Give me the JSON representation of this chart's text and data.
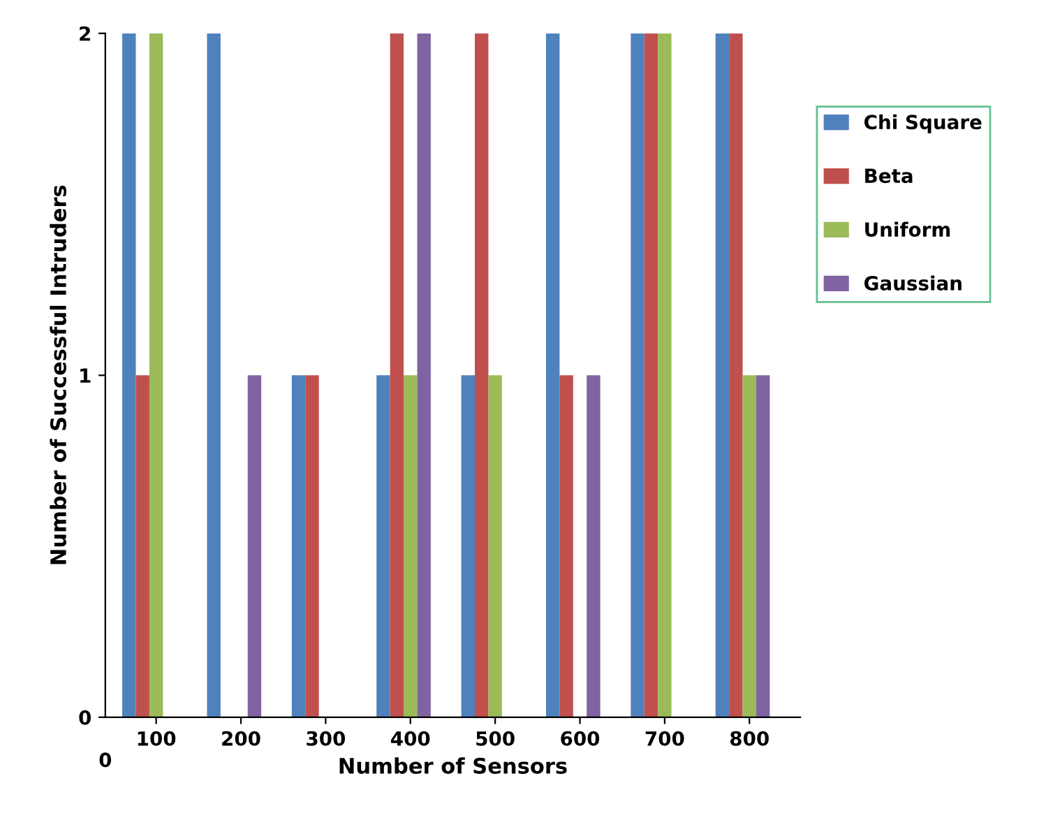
{
  "chart_data": {
    "type": "bar",
    "xlabel": "Number of Sensors",
    "ylabel": "Number of Successful Intruders",
    "categories": [
      "100",
      "200",
      "300",
      "400",
      "500",
      "600",
      "700",
      "800"
    ],
    "series": [
      {
        "name": "Chi Square",
        "color": "#4f81bd",
        "values": [
          2,
          2,
          1,
          1,
          1,
          2,
          2,
          2
        ]
      },
      {
        "name": "Beta",
        "color": "#c0504d",
        "values": [
          1,
          0,
          1,
          2,
          2,
          1,
          2,
          2
        ]
      },
      {
        "name": "Uniform",
        "color": "#9bbb59",
        "values": [
          2,
          0,
          0,
          1,
          1,
          0,
          2,
          1
        ]
      },
      {
        "name": "Gaussian",
        "color": "#8064a2",
        "values": [
          0,
          1,
          0,
          2,
          0,
          1,
          0,
          1
        ]
      }
    ],
    "ylim": [
      0,
      2
    ],
    "yticks": [
      0,
      1,
      2
    ],
    "grid": false,
    "legend": "right",
    "annotations": [
      "0"
    ]
  }
}
